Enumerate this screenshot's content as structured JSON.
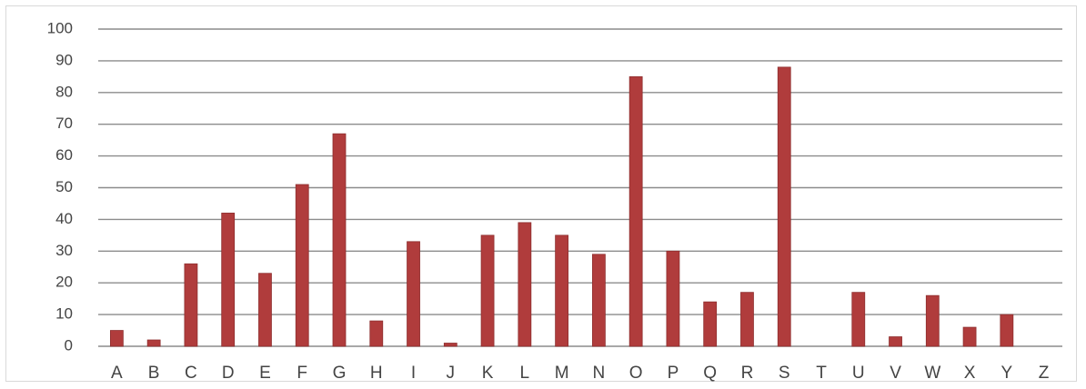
{
  "chart_data": {
    "type": "bar",
    "title": "",
    "xlabel": "",
    "ylabel": "",
    "categories": [
      "A",
      "B",
      "C",
      "D",
      "E",
      "F",
      "G",
      "H",
      "I",
      "J",
      "K",
      "L",
      "M",
      "N",
      "O",
      "P",
      "Q",
      "R",
      "S",
      "T",
      "U",
      "V",
      "W",
      "X",
      "Y",
      "Z"
    ],
    "values": [
      5,
      2,
      26,
      42,
      23,
      51,
      67,
      8,
      33,
      1,
      35,
      39,
      35,
      29,
      85,
      30,
      14,
      17,
      88,
      0,
      17,
      3,
      16,
      6,
      10,
      0
    ],
    "ylim": [
      0,
      100
    ],
    "yticks": [
      0,
      10,
      20,
      30,
      40,
      50,
      60,
      70,
      80,
      90,
      100
    ],
    "grid": true,
    "legend": "none",
    "bar_color": "#b03c3c"
  }
}
